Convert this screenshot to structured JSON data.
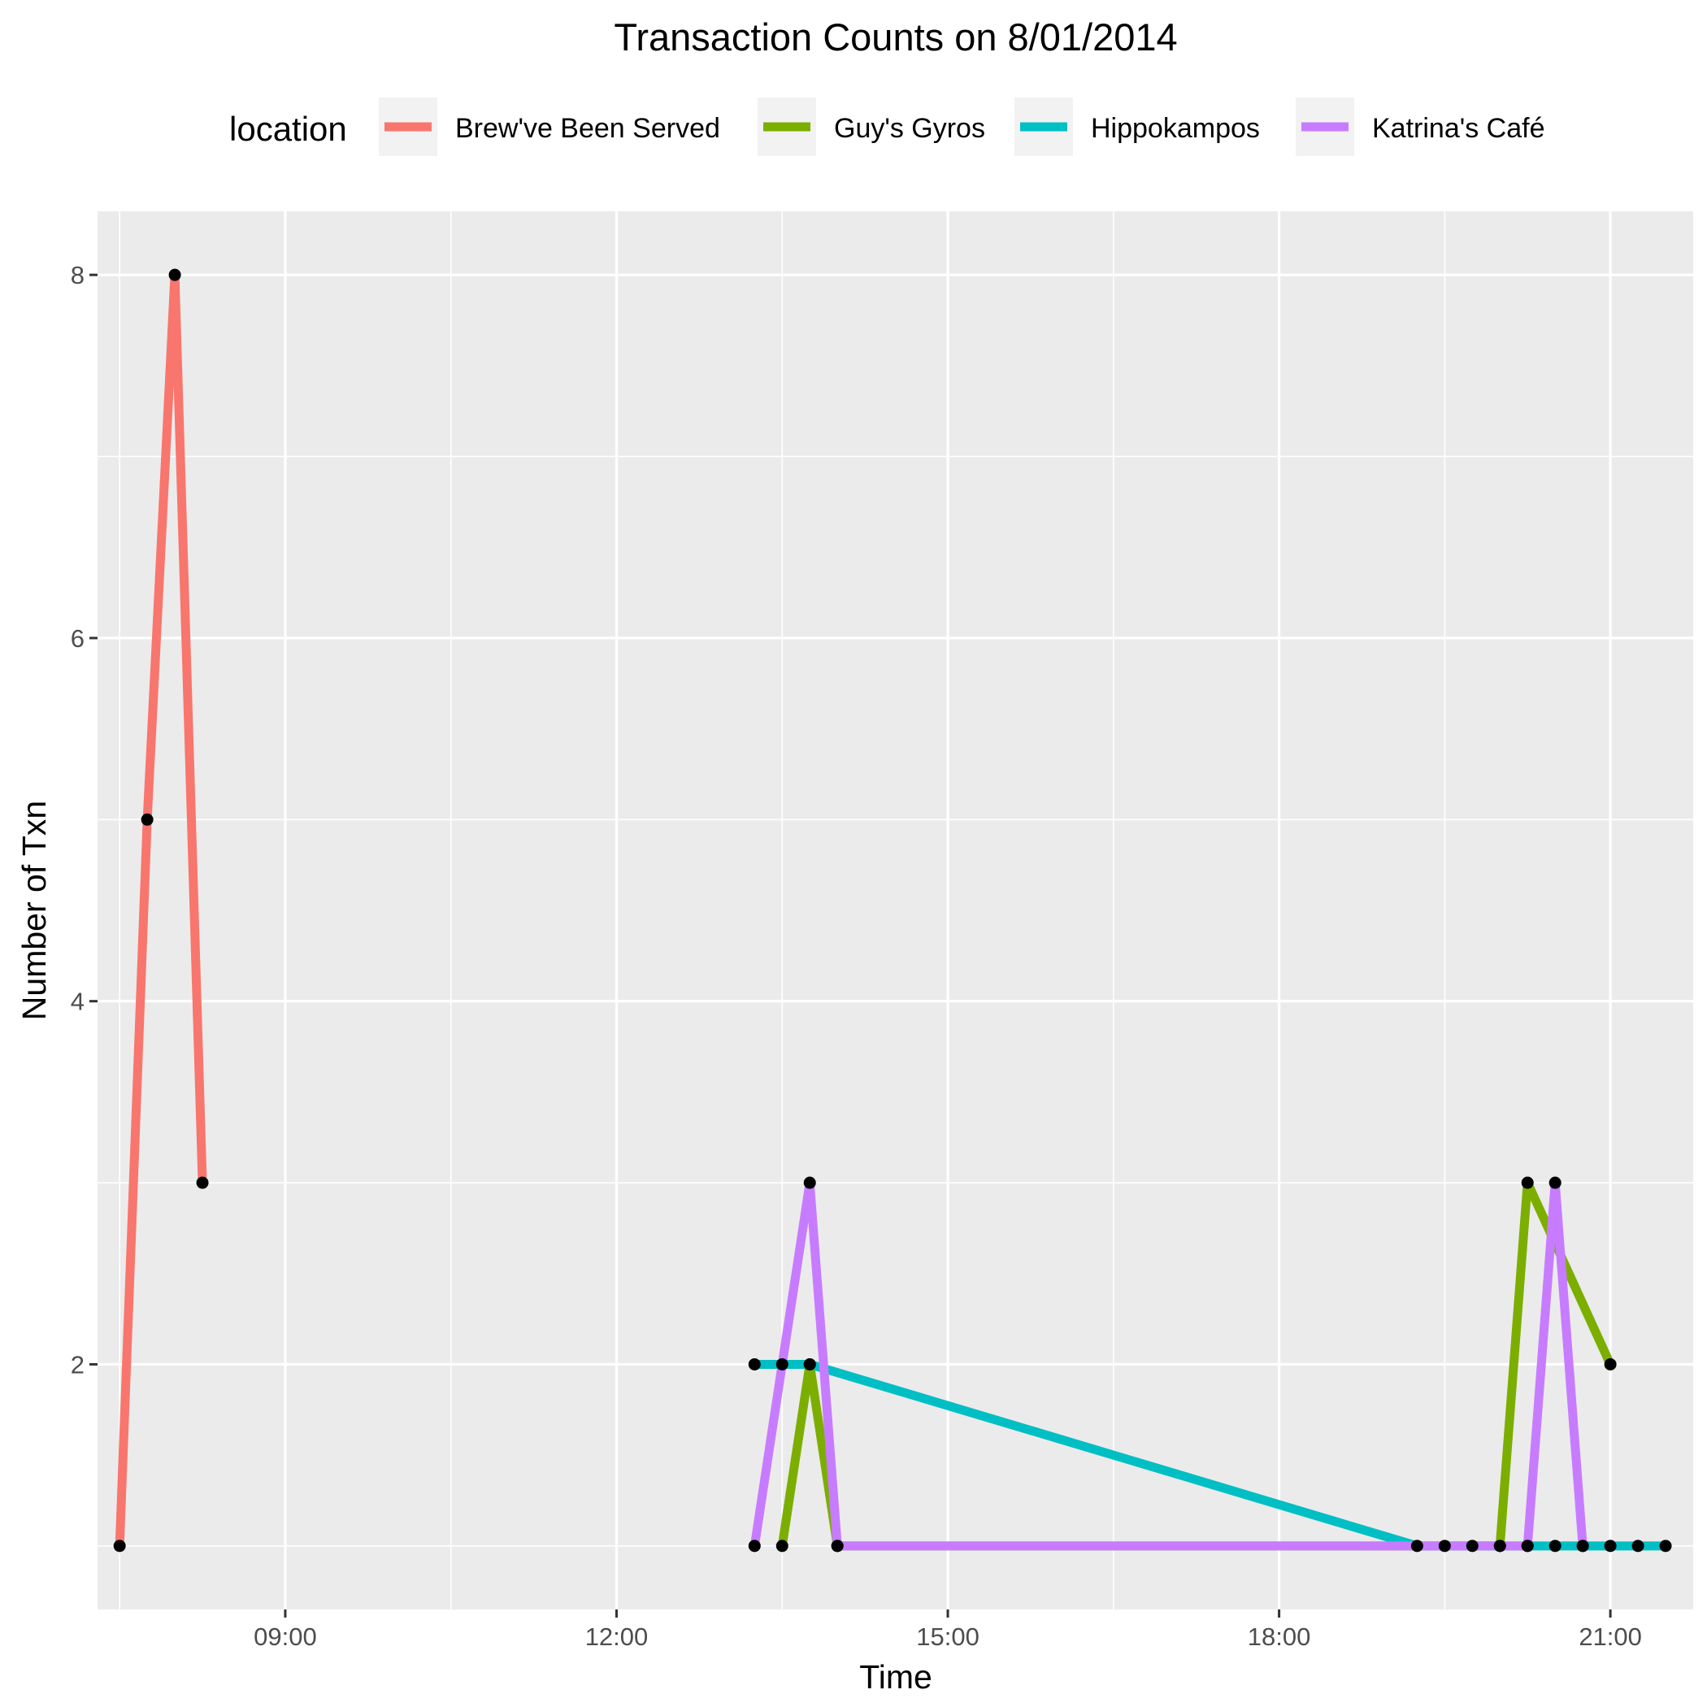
{
  "chart_data": {
    "type": "line",
    "title": "Transaction Counts on 8/01/2014",
    "xlabel": "Time",
    "ylabel": "Number of Txn",
    "x_unit": "time of day (HH:MM)",
    "xlim": [
      "07:18",
      "21:45"
    ],
    "ylim": [
      0.65,
      8.35
    ],
    "x_ticks": [
      "09:00",
      "12:00",
      "15:00",
      "18:00",
      "21:00"
    ],
    "y_ticks": [
      2,
      4,
      6,
      8
    ],
    "grid": true,
    "legend_title": "location",
    "legend_position": "top",
    "series": [
      {
        "name": "Brew've Been Served",
        "color": "#F8766D",
        "x": [
          "07:30",
          "07:45",
          "08:00",
          "08:15"
        ],
        "y": [
          1,
          5,
          8,
          3
        ]
      },
      {
        "name": "Guy's Gyros",
        "color": "#7CAE00",
        "x": [
          "13:30",
          "13:45",
          "14:00",
          "20:00",
          "20:15",
          "21:00"
        ],
        "y": [
          1,
          2,
          1,
          1,
          3,
          2
        ]
      },
      {
        "name": "Hippokampos",
        "color": "#00BFC4",
        "x": [
          "13:15",
          "13:30",
          "13:45",
          "19:15",
          "19:30",
          "19:45",
          "20:00",
          "20:15",
          "20:30",
          "20:45",
          "21:00",
          "21:15",
          "21:30"
        ],
        "y": [
          2,
          2,
          2,
          1,
          1,
          1,
          1,
          1,
          1,
          1,
          1,
          1,
          1
        ]
      },
      {
        "name": "Katrina's Café",
        "color": "#C77CFF",
        "x": [
          "13:15",
          "13:45",
          "14:00",
          "20:15",
          "20:30",
          "20:45"
        ],
        "y": [
          1,
          3,
          1,
          1,
          3,
          1
        ]
      }
    ]
  }
}
